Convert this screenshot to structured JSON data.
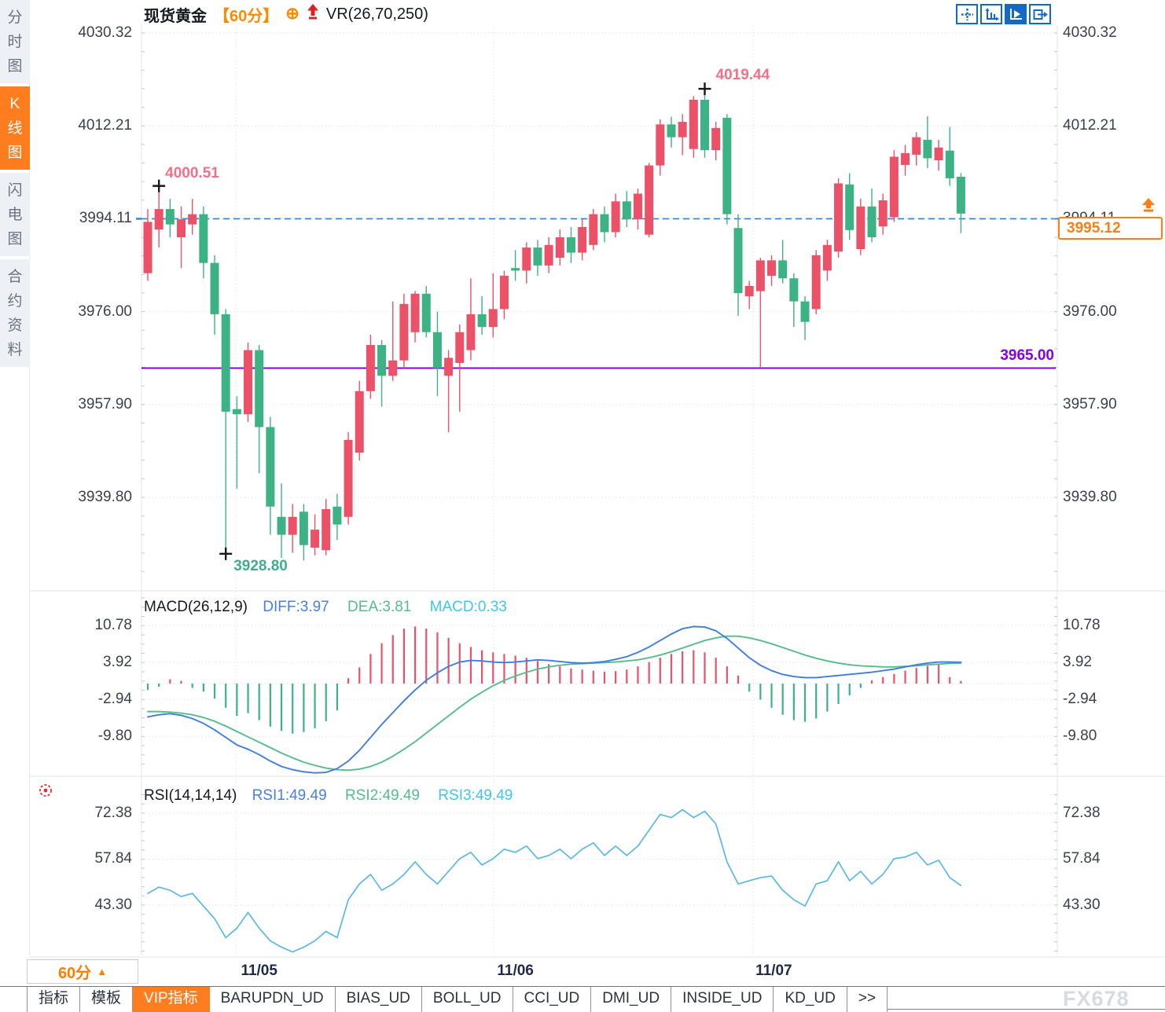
{
  "header": {
    "symbol": "现货黄金",
    "period_tag": "【60分】",
    "indicator": "VR(26,70,250)"
  },
  "sidebar": {
    "tabs": [
      {
        "id": "time-share-chart",
        "label": "分时图",
        "active": false
      },
      {
        "id": "candlestick-chart",
        "label": "K线图",
        "active": true
      },
      {
        "id": "lightning-chart",
        "label": "闪电图",
        "active": false
      },
      {
        "id": "contract-info",
        "label": "合约资料",
        "active": false
      }
    ]
  },
  "toolbar": {
    "icons": [
      {
        "id": "crosshair",
        "active": false
      },
      {
        "id": "axis-scale",
        "active": false
      },
      {
        "id": "auto-follow",
        "active": true
      },
      {
        "id": "go-to-latest",
        "active": false
      }
    ]
  },
  "annotations": {
    "first_high": "4000.51",
    "peak_high": "4019.44",
    "session_low": "3928.80",
    "support": "3965.00"
  },
  "price_tag": {
    "value": "3995.12"
  },
  "macd_header": {
    "title": "MACD(26,12,9)",
    "diff": "DIFF:3.97",
    "dea": "DEA:3.81",
    "macd": "MACD:0.33"
  },
  "rsi_header": {
    "title": "RSI(14,14,14)",
    "rsi1": "RSI1:49.49",
    "rsi2": "RSI2:49.49",
    "rsi3": "RSI3:49.49"
  },
  "period_selector": {
    "label": "60分",
    "arrow": "▲"
  },
  "bottom_bar": {
    "tabs": [
      "指标",
      "模板",
      "VIP指标",
      "BARUPDN_UD",
      "BIAS_UD",
      "BOLL_UD",
      "CCI_UD",
      "DMI_UD",
      "INSIDE_UD",
      "KD_UD",
      ">>"
    ],
    "active": "VIP指标"
  },
  "watermark": "FX678",
  "colors": {
    "up": "#eb5268",
    "down": "#3db385",
    "dashed_line": "#1e86ee",
    "support_line": "#8400e0",
    "diff": "#3f7de0",
    "dea": "#55bd8c",
    "macd": "#3ec6ec",
    "rsi_line": "#59b8e8",
    "accent": "#ff7d1f",
    "grid": "#dfe2e7"
  },
  "chart_data": {
    "type": "candlestick+macd+rsi",
    "title": "现货黄金 60分",
    "main": {
      "y_ticks": [
        4030.32,
        4012.21,
        3994.11,
        3976.0,
        3957.9,
        3939.8
      ],
      "ylim": [
        3928.0,
        4032.0
      ],
      "dashed_line": 3994.11,
      "support_line": 3965.0,
      "last_price": 3995.12,
      "x_labels": [
        {
          "label": "11/05",
          "index": 10.0
        },
        {
          "label": "11/06",
          "index": 33.0
        },
        {
          "label": "11/07",
          "index": 56.2
        }
      ],
      "day_breaks": [
        7.9,
        31.05,
        54.35
      ],
      "markers": [
        {
          "index": 1,
          "price": 4000.51,
          "label": "4000.51"
        },
        {
          "index": 50,
          "price": 4019.44,
          "label": "4019.44"
        },
        {
          "index": 7,
          "price": 3928.8,
          "label": "3928.80"
        }
      ],
      "candles": [
        [
          3983.5,
          3996.0,
          3982.0,
          3993.5
        ],
        [
          3992.0,
          4000.51,
          3988.5,
          3996.0
        ],
        [
          3996.0,
          3998.0,
          3990.5,
          3993.0
        ],
        [
          3990.5,
          3996.5,
          3984.5,
          3994.0
        ],
        [
          3993.0,
          3998.0,
          3991.0,
          3995.0
        ],
        [
          3995.0,
          3996.5,
          3982.5,
          3985.5
        ],
        [
          3985.5,
          3987.0,
          3971.5,
          3975.5
        ],
        [
          3975.5,
          3976.5,
          3928.8,
          3956.5
        ],
        [
          3957.0,
          3959.5,
          3941.5,
          3956.0
        ],
        [
          3956.0,
          3970.0,
          3954.5,
          3968.5
        ],
        [
          3968.5,
          3969.5,
          3944.5,
          3953.5
        ],
        [
          3953.5,
          3955.5,
          3932.5,
          3938.0
        ],
        [
          3936.0,
          3942.5,
          3928.0,
          3932.5
        ],
        [
          3932.5,
          3938.5,
          3929.0,
          3936.0
        ],
        [
          3937.0,
          3938.5,
          3927.5,
          3930.5
        ],
        [
          3930.0,
          3936.5,
          3928.5,
          3933.5
        ],
        [
          3929.5,
          3939.5,
          3928.5,
          3937.5
        ],
        [
          3938.0,
          3940.5,
          3931.5,
          3934.5
        ],
        [
          3936.0,
          3952.5,
          3934.5,
          3951.0
        ],
        [
          3948.5,
          3962.5,
          3947.0,
          3960.5
        ],
        [
          3960.5,
          3971.5,
          3959.0,
          3969.5
        ],
        [
          3969.5,
          3970.5,
          3957.5,
          3963.5
        ],
        [
          3963.5,
          3978.0,
          3962.5,
          3966.5
        ],
        [
          3966.5,
          3979.5,
          3965.0,
          3977.5
        ],
        [
          3972.0,
          3980.0,
          3970.0,
          3979.5
        ],
        [
          3979.5,
          3981.0,
          3971.0,
          3972.0
        ],
        [
          3972.0,
          3976.0,
          3959.5,
          3965.0
        ],
        [
          3963.5,
          3968.5,
          3952.5,
          3967.0
        ],
        [
          3966.0,
          3973.5,
          3956.5,
          3972.0
        ],
        [
          3968.5,
          3982.5,
          3966.5,
          3975.5
        ],
        [
          3975.5,
          3979.0,
          3971.5,
          3973.0
        ],
        [
          3973.0,
          3983.5,
          3971.0,
          3976.5
        ],
        [
          3976.5,
          3984.0,
          3974.5,
          3983.0
        ],
        [
          3984.5,
          3988.0,
          3982.0,
          3984.0
        ],
        [
          3984.0,
          3989.5,
          3981.5,
          3988.5
        ],
        [
          3988.5,
          3990.0,
          3983.0,
          3985.0
        ],
        [
          3985.0,
          3990.5,
          3983.5,
          3989.0
        ],
        [
          3986.5,
          3992.0,
          3985.0,
          3990.5
        ],
        [
          3990.5,
          3992.5,
          3985.5,
          3987.5
        ],
        [
          3987.5,
          3994.0,
          3986.0,
          3992.5
        ],
        [
          3989.0,
          3996.0,
          3988.0,
          3995.0
        ],
        [
          3995.0,
          3996.5,
          3989.5,
          3991.5
        ],
        [
          3991.5,
          3999.0,
          3990.5,
          3997.5
        ],
        [
          3997.5,
          3999.5,
          3992.5,
          3994.0
        ],
        [
          3994.0,
          4000.0,
          3992.0,
          3999.0
        ],
        [
          3991.0,
          4005.0,
          3990.5,
          4004.5
        ],
        [
          4004.5,
          4013.5,
          4002.5,
          4012.5
        ],
        [
          4012.5,
          4014.0,
          4008.0,
          4010.0
        ],
        [
          4010.0,
          4014.5,
          4006.5,
          4013.0
        ],
        [
          4007.7,
          4018.0,
          4006.0,
          4017.3
        ],
        [
          4017.3,
          4019.44,
          4006.0,
          4007.5
        ],
        [
          4007.5,
          4013.0,
          4005.5,
          4011.8
        ],
        [
          4013.8,
          4014.5,
          3993.0,
          3995.0
        ],
        [
          3992.3,
          3995.0,
          3975.2,
          3979.6
        ],
        [
          3979.0,
          3982.0,
          3976.5,
          3981.0
        ],
        [
          3980.0,
          3986.5,
          3965.2,
          3986.0
        ],
        [
          3983.0,
          3987.0,
          3981.0,
          3986.0
        ],
        [
          3986.0,
          3990.0,
          3981.5,
          3982.5
        ],
        [
          3982.5,
          3983.5,
          3973.0,
          3978.0
        ],
        [
          3978.0,
          3979.0,
          3970.5,
          3974.0
        ],
        [
          3976.5,
          3988.0,
          3975.5,
          3987.0
        ],
        [
          3984.0,
          3990.0,
          3982.0,
          3989.0
        ],
        [
          3987.7,
          4002.0,
          3986.5,
          4001.0
        ],
        [
          4000.8,
          4003.0,
          3990.0,
          3991.9
        ],
        [
          3988.2,
          3998.0,
          3987.0,
          3996.5
        ],
        [
          3996.5,
          4000.0,
          3989.5,
          3990.5
        ],
        [
          3992.6,
          3999.0,
          3991.0,
          3997.7
        ],
        [
          3994.4,
          4007.5,
          3993.5,
          4006.2
        ],
        [
          4004.6,
          4008.5,
          4002.5,
          4006.9
        ],
        [
          4006.6,
          4011.0,
          4004.5,
          4010.0
        ],
        [
          4009.5,
          4014.1,
          4004.0,
          4005.9
        ],
        [
          4005.5,
          4009.5,
          4003.5,
          4008.0
        ],
        [
          4007.4,
          4012.0,
          4000.5,
          4002.0
        ],
        [
          4002.3,
          4003.0,
          3991.3,
          3995.12
        ]
      ]
    },
    "macd": {
      "params": "26,12,9",
      "diff": 3.97,
      "dea": 3.81,
      "macd": 0.33,
      "y_ticks": [
        10.78,
        3.92,
        -2.94,
        -9.8
      ],
      "histogram": [
        -1.2,
        -0.6,
        0.8,
        0.5,
        -0.8,
        -1.5,
        -2.8,
        -4.5,
        -6.0,
        -5.5,
        -6.8,
        -8.0,
        -8.8,
        -9.3,
        -9.0,
        -8.3,
        -7.0,
        -5.0,
        1.0,
        3.0,
        5.5,
        7.5,
        9.0,
        10.2,
        10.6,
        10.2,
        9.5,
        8.5,
        7.5,
        6.8,
        6.2,
        5.8,
        5.5,
        5.2,
        4.8,
        4.2,
        3.6,
        3.2,
        2.8,
        2.6,
        2.4,
        2.2,
        2.3,
        2.6,
        3.2,
        4.0,
        4.8,
        5.5,
        6.0,
        6.2,
        5.8,
        4.8,
        3.2,
        1.5,
        -1.5,
        -3.0,
        -4.5,
        -5.8,
        -6.8,
        -7.1,
        -6.5,
        -5.2,
        -3.8,
        -2.2,
        -0.8,
        0.6,
        1.2,
        1.8,
        2.4,
        2.9,
        3.3,
        3.5,
        1.2,
        0.5
      ],
      "diff_line": [
        -6.2,
        -5.8,
        -5.6,
        -5.9,
        -6.5,
        -7.4,
        -8.6,
        -10.0,
        -11.4,
        -12.2,
        -13.2,
        -14.4,
        -15.4,
        -16.0,
        -16.4,
        -16.6,
        -16.5,
        -15.8,
        -14.4,
        -12.4,
        -10.0,
        -7.6,
        -5.4,
        -3.2,
        -1.2,
        0.6,
        2.0,
        3.2,
        4.0,
        4.3,
        4.2,
        4.0,
        3.9,
        4.0,
        4.2,
        4.4,
        4.3,
        4.1,
        3.9,
        3.8,
        3.9,
        4.1,
        4.5,
        5.0,
        5.8,
        6.8,
        8.0,
        9.2,
        10.2,
        10.6,
        10.5,
        9.8,
        8.4,
        6.6,
        4.8,
        3.4,
        2.4,
        1.7,
        1.3,
        1.1,
        1.1,
        1.3,
        1.5,
        1.7,
        1.9,
        2.1,
        2.4,
        2.7,
        3.1,
        3.5,
        3.8,
        4.0,
        4.0,
        3.97
      ],
      "dea_line": [
        -5.2,
        -5.2,
        -5.3,
        -5.5,
        -5.8,
        -6.3,
        -7.0,
        -7.9,
        -8.9,
        -9.9,
        -10.9,
        -11.9,
        -12.9,
        -13.8,
        -14.6,
        -15.2,
        -15.7,
        -16.0,
        -16.1,
        -15.9,
        -15.4,
        -14.6,
        -13.5,
        -12.2,
        -10.8,
        -9.2,
        -7.6,
        -6.0,
        -4.4,
        -2.9,
        -1.6,
        -0.4,
        0.6,
        1.4,
        2.1,
        2.7,
        3.1,
        3.4,
        3.6,
        3.7,
        3.8,
        3.9,
        4.0,
        4.2,
        4.4,
        4.8,
        5.3,
        5.9,
        6.6,
        7.3,
        8.0,
        8.5,
        8.8,
        8.8,
        8.5,
        8.0,
        7.4,
        6.7,
        6.0,
        5.3,
        4.7,
        4.2,
        3.8,
        3.5,
        3.3,
        3.2,
        3.1,
        3.1,
        3.2,
        3.3,
        3.5,
        3.6,
        3.75,
        3.81
      ]
    },
    "rsi": {
      "params": "14,14,14",
      "rsi1": 49.49,
      "rsi2": 49.49,
      "rsi3": 49.49,
      "y_ticks": [
        72.38,
        57.84,
        43.3
      ],
      "values": [
        47,
        49,
        48,
        46,
        47,
        43,
        39,
        33,
        36,
        41,
        36,
        32,
        30,
        28.5,
        30,
        32,
        35,
        33,
        45,
        50,
        53,
        48,
        50,
        53,
        57,
        53,
        50,
        54,
        58,
        60,
        56,
        58,
        61,
        60,
        62,
        58,
        59,
        61,
        58,
        61,
        63,
        59,
        62,
        59,
        62,
        67,
        72,
        71,
        73.5,
        71,
        73,
        69,
        57,
        50,
        51,
        52,
        52.5,
        48,
        45,
        43,
        50,
        51,
        57,
        51,
        54,
        50,
        53,
        58,
        58.5,
        60,
        56,
        57.5,
        52,
        49.49
      ]
    }
  }
}
